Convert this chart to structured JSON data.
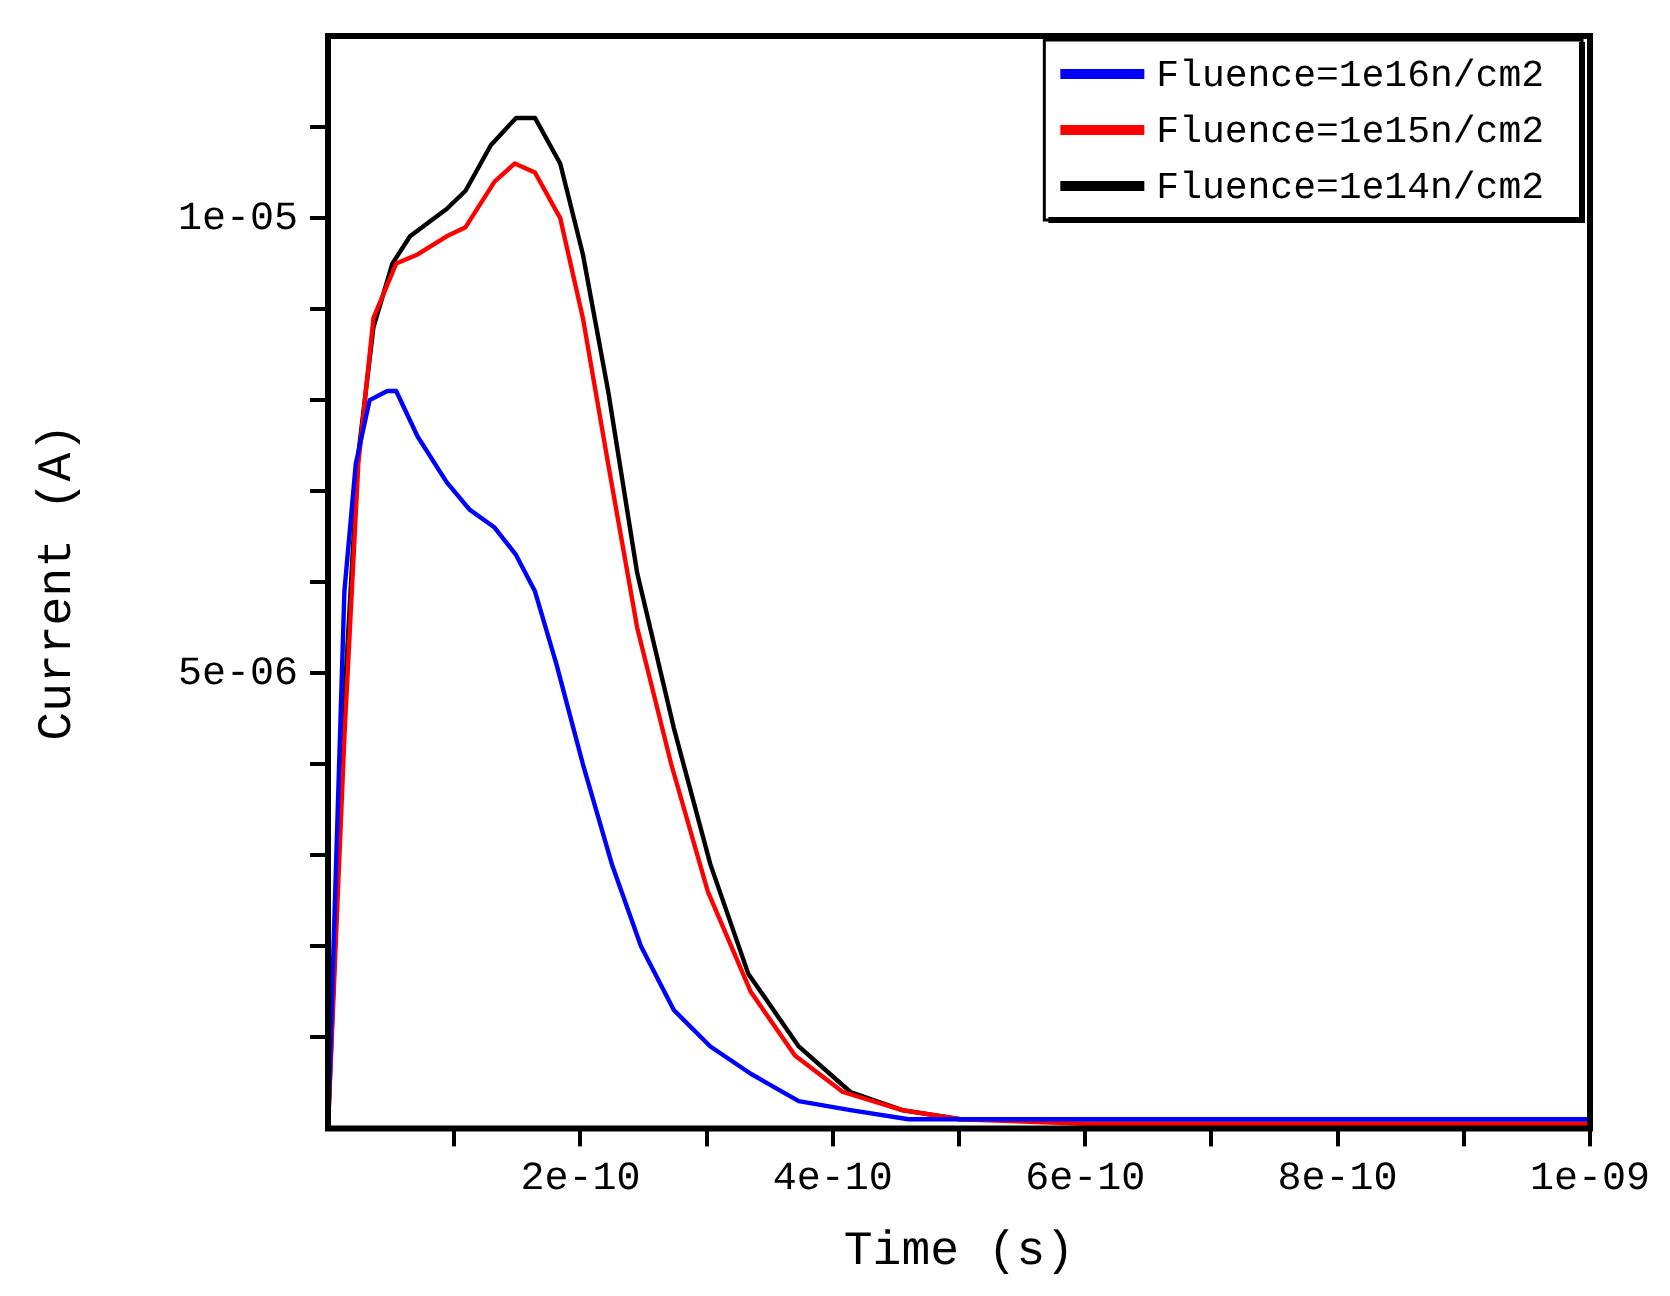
{
  "chart_data": {
    "type": "line",
    "xlabel": "Time (s)",
    "ylabel": "Current (A)",
    "xlim": [
      0,
      1e-09
    ],
    "ylim": [
      0,
      1.2e-05
    ],
    "xticks": [
      {
        "value": 1e-10,
        "label": null
      },
      {
        "value": 2e-10,
        "label": "2e-10"
      },
      {
        "value": 3e-10,
        "label": null
      },
      {
        "value": 4e-10,
        "label": "4e-10"
      },
      {
        "value": 5e-10,
        "label": null
      },
      {
        "value": 6e-10,
        "label": "6e-10"
      },
      {
        "value": 7e-10,
        "label": null
      },
      {
        "value": 8e-10,
        "label": "8e-10"
      },
      {
        "value": 9e-10,
        "label": null
      },
      {
        "value": 1e-09,
        "label": "1e-09"
      }
    ],
    "yticks": [
      {
        "value": 1e-06,
        "label": null
      },
      {
        "value": 2e-06,
        "label": null
      },
      {
        "value": 3e-06,
        "label": null
      },
      {
        "value": 4e-06,
        "label": null
      },
      {
        "value": 5e-06,
        "label": "5e-06"
      },
      {
        "value": 6e-06,
        "label": null
      },
      {
        "value": 7e-06,
        "label": null
      },
      {
        "value": 8e-06,
        "label": null
      },
      {
        "value": 9e-06,
        "label": null
      },
      {
        "value": 1e-05,
        "label": "1e-05"
      },
      {
        "value": 1.1e-05,
        "label": null
      }
    ],
    "grid": false,
    "legend": "top right",
    "marker": "none",
    "line_style": "solid",
    "series": [
      {
        "name": "Fluence=1e16n/cm2",
        "color": "#0000ff",
        "x": [
          0,
          1.3e-11,
          2.2e-11,
          3.3e-11,
          4.7e-11,
          5.4e-11,
          7.1e-11,
          9.4e-11,
          1.12e-10,
          1.32e-10,
          1.49e-10,
          1.64e-10,
          1.81e-10,
          2.02e-10,
          2.25e-10,
          2.48e-10,
          2.74e-10,
          3.03e-10,
          3.35e-10,
          3.73e-10,
          4.14e-10,
          4.6e-10,
          6e-10,
          8e-10,
          1e-09
        ],
        "values": [
          0,
          5.9e-06,
          7.3e-06,
          8e-06,
          8.1e-06,
          8.1e-06,
          7.6e-06,
          7.1e-06,
          6.8e-06,
          6.6e-06,
          6.3e-06,
          5.9e-06,
          5.1e-06,
          4e-06,
          2.9e-06,
          2e-06,
          1.3e-06,
          9e-07,
          6e-07,
          3e-07,
          2e-07,
          1e-07,
          1e-07,
          1e-07,
          1e-07
        ]
      },
      {
        "name": "Fluence=1e15n/cm2",
        "color": "#ff0000",
        "x": [
          0,
          1.3e-11,
          2.4e-11,
          3.6e-11,
          5.4e-11,
          7.1e-11,
          9.4e-11,
          1.09e-10,
          1.32e-10,
          1.48e-10,
          1.64e-10,
          1.84e-10,
          2.02e-10,
          2.22e-10,
          2.45e-10,
          2.72e-10,
          3.01e-10,
          3.35e-10,
          3.7e-10,
          4.08e-10,
          4.55e-10,
          5.01e-10,
          6e-10,
          8e-10,
          1e-09
        ],
        "values": [
          0,
          4.3e-06,
          7.3e-06,
          8.9e-06,
          9.5e-06,
          9.6e-06,
          9.8e-06,
          9.9e-06,
          1.04e-05,
          1.06e-05,
          1.05e-05,
          1e-05,
          8.9e-06,
          7.3e-06,
          5.5e-06,
          4e-06,
          2.6e-06,
          1.5e-06,
          8e-07,
          4e-07,
          2e-07,
          1e-07,
          5e-08,
          5e-08,
          5e-08
        ]
      },
      {
        "name": "Fluence=1e14n/cm2",
        "color": "#000000",
        "x": [
          0,
          1.3e-11,
          2.4e-11,
          3.6e-11,
          5.1e-11,
          6.5e-11,
          9.4e-11,
          1.09e-10,
          1.29e-10,
          1.49e-10,
          1.64e-10,
          1.84e-10,
          2.02e-10,
          2.22e-10,
          2.45e-10,
          2.74e-10,
          3.03e-10,
          3.33e-10,
          3.73e-10,
          4.14e-10,
          4.55e-10,
          5.01e-10,
          6e-10,
          8e-10,
          1e-09
        ],
        "values": [
          0,
          4.7e-06,
          7.4e-06,
          8.8e-06,
          9.5e-06,
          9.8e-06,
          1.01e-05,
          1.03e-05,
          1.08e-05,
          1.11e-05,
          1.11e-05,
          1.06e-05,
          9.6e-06,
          8.1e-06,
          6.1e-06,
          4.4e-06,
          2.9e-06,
          1.7e-06,
          9e-07,
          4e-07,
          2e-07,
          1e-07,
          1e-07,
          1e-07,
          1e-07
        ]
      }
    ]
  }
}
